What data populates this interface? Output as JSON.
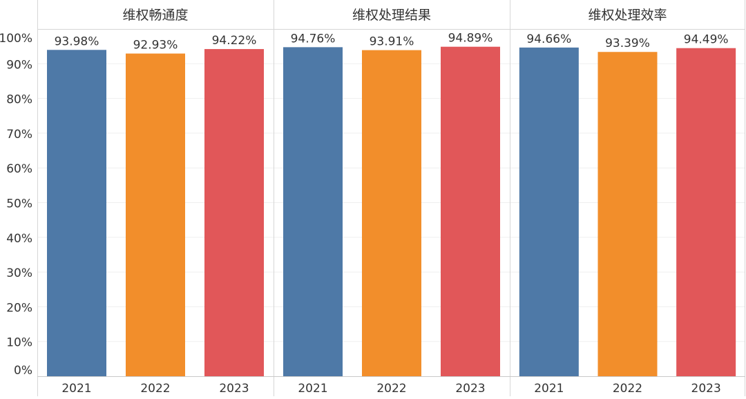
{
  "chart_data": {
    "type": "bar",
    "layout": "faceted",
    "categories": [
      "2021",
      "2022",
      "2023"
    ],
    "y_ticks": [
      "0%",
      "10%",
      "20%",
      "30%",
      "40%",
      "50%",
      "60%",
      "70%",
      "80%",
      "90%",
      "100%"
    ],
    "ylim": [
      0,
      100
    ],
    "value_unit": "%",
    "grid": true,
    "legend": "none",
    "colors": [
      "#4e79a7",
      "#f28e2b",
      "#e15759"
    ],
    "panels": [
      {
        "title": "维权畅通度",
        "values": [
          93.98,
          92.93,
          94.22
        ],
        "labels": [
          "93.98%",
          "92.93%",
          "94.22%"
        ]
      },
      {
        "title": "维权处理结果",
        "values": [
          94.76,
          93.91,
          94.89
        ],
        "labels": [
          "94.76%",
          "93.91%",
          "94.89%"
        ]
      },
      {
        "title": "维权处理效率",
        "values": [
          94.66,
          93.39,
          94.49
        ],
        "labels": [
          "94.66%",
          "93.39%",
          "94.49%"
        ]
      }
    ]
  }
}
